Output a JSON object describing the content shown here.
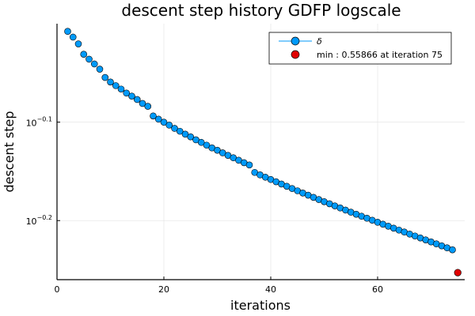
{
  "chart_data": {
    "type": "scatter",
    "title": "descent step history GDFP logscale",
    "xlabel": "iterations",
    "ylabel": "descent step",
    "xlim": [
      0,
      76.3
    ],
    "ylim_log10": [
      -0.26,
      -0.0
    ],
    "y_scale": "log10",
    "x_ticks": [
      0,
      20,
      40,
      60
    ],
    "x_tick_labels": [
      "0",
      "20",
      "40",
      "60"
    ],
    "y_ticks_log10": [
      -0.1,
      -0.2
    ],
    "y_tick_labels": [
      {
        "base": "10",
        "exp": "−0.1"
      },
      {
        "base": "10",
        "exp": "−0.2"
      }
    ],
    "grid": true,
    "legend_position": "top-right",
    "series": [
      {
        "name": "δ",
        "color": "#009AFA",
        "x": [
          2,
          3,
          4,
          5,
          6,
          7,
          8,
          9,
          10,
          11,
          12,
          13,
          14,
          15,
          16,
          17,
          18,
          19,
          20,
          21,
          22,
          23,
          24,
          25,
          26,
          27,
          28,
          29,
          30,
          31,
          32,
          33,
          34,
          35,
          36,
          37,
          38,
          39,
          40,
          41,
          42,
          43,
          44,
          45,
          46,
          47,
          48,
          49,
          50,
          51,
          52,
          53,
          54,
          55,
          56,
          57,
          58,
          59,
          60,
          61,
          62,
          63,
          64,
          65,
          66,
          67,
          68,
          69,
          70,
          71,
          72,
          73,
          74
        ],
        "y": [
          0.9822,
          0.9691,
          0.9539,
          0.931,
          0.9204,
          0.9101,
          0.8991,
          0.8818,
          0.8725,
          0.8652,
          0.8582,
          0.8502,
          0.8442,
          0.8375,
          0.8298,
          0.8243,
          0.8059,
          0.7999,
          0.7942,
          0.7889,
          0.7829,
          0.7776,
          0.7723,
          0.7675,
          0.7622,
          0.7576,
          0.7527,
          0.7479,
          0.7438,
          0.7393,
          0.7349,
          0.7308,
          0.7266,
          0.7225,
          0.7186,
          0.7062,
          0.7022,
          0.6984,
          0.6947,
          0.691,
          0.6873,
          0.6837,
          0.6801,
          0.6765,
          0.673,
          0.6696,
          0.6662,
          0.6628,
          0.6595,
          0.6563,
          0.653,
          0.6499,
          0.6467,
          0.6435,
          0.6404,
          0.6374,
          0.6345,
          0.6315,
          0.6285,
          0.6256,
          0.6228,
          0.6199,
          0.6171,
          0.6143,
          0.6114,
          0.6086,
          0.6059,
          0.6031,
          0.6003,
          0.5975,
          0.5948,
          0.592,
          0.5893
        ]
      },
      {
        "name": "min : 0.55866 at iteration 75",
        "color": "#E00000",
        "x": [
          75
        ],
        "y": [
          0.55866
        ]
      }
    ]
  }
}
